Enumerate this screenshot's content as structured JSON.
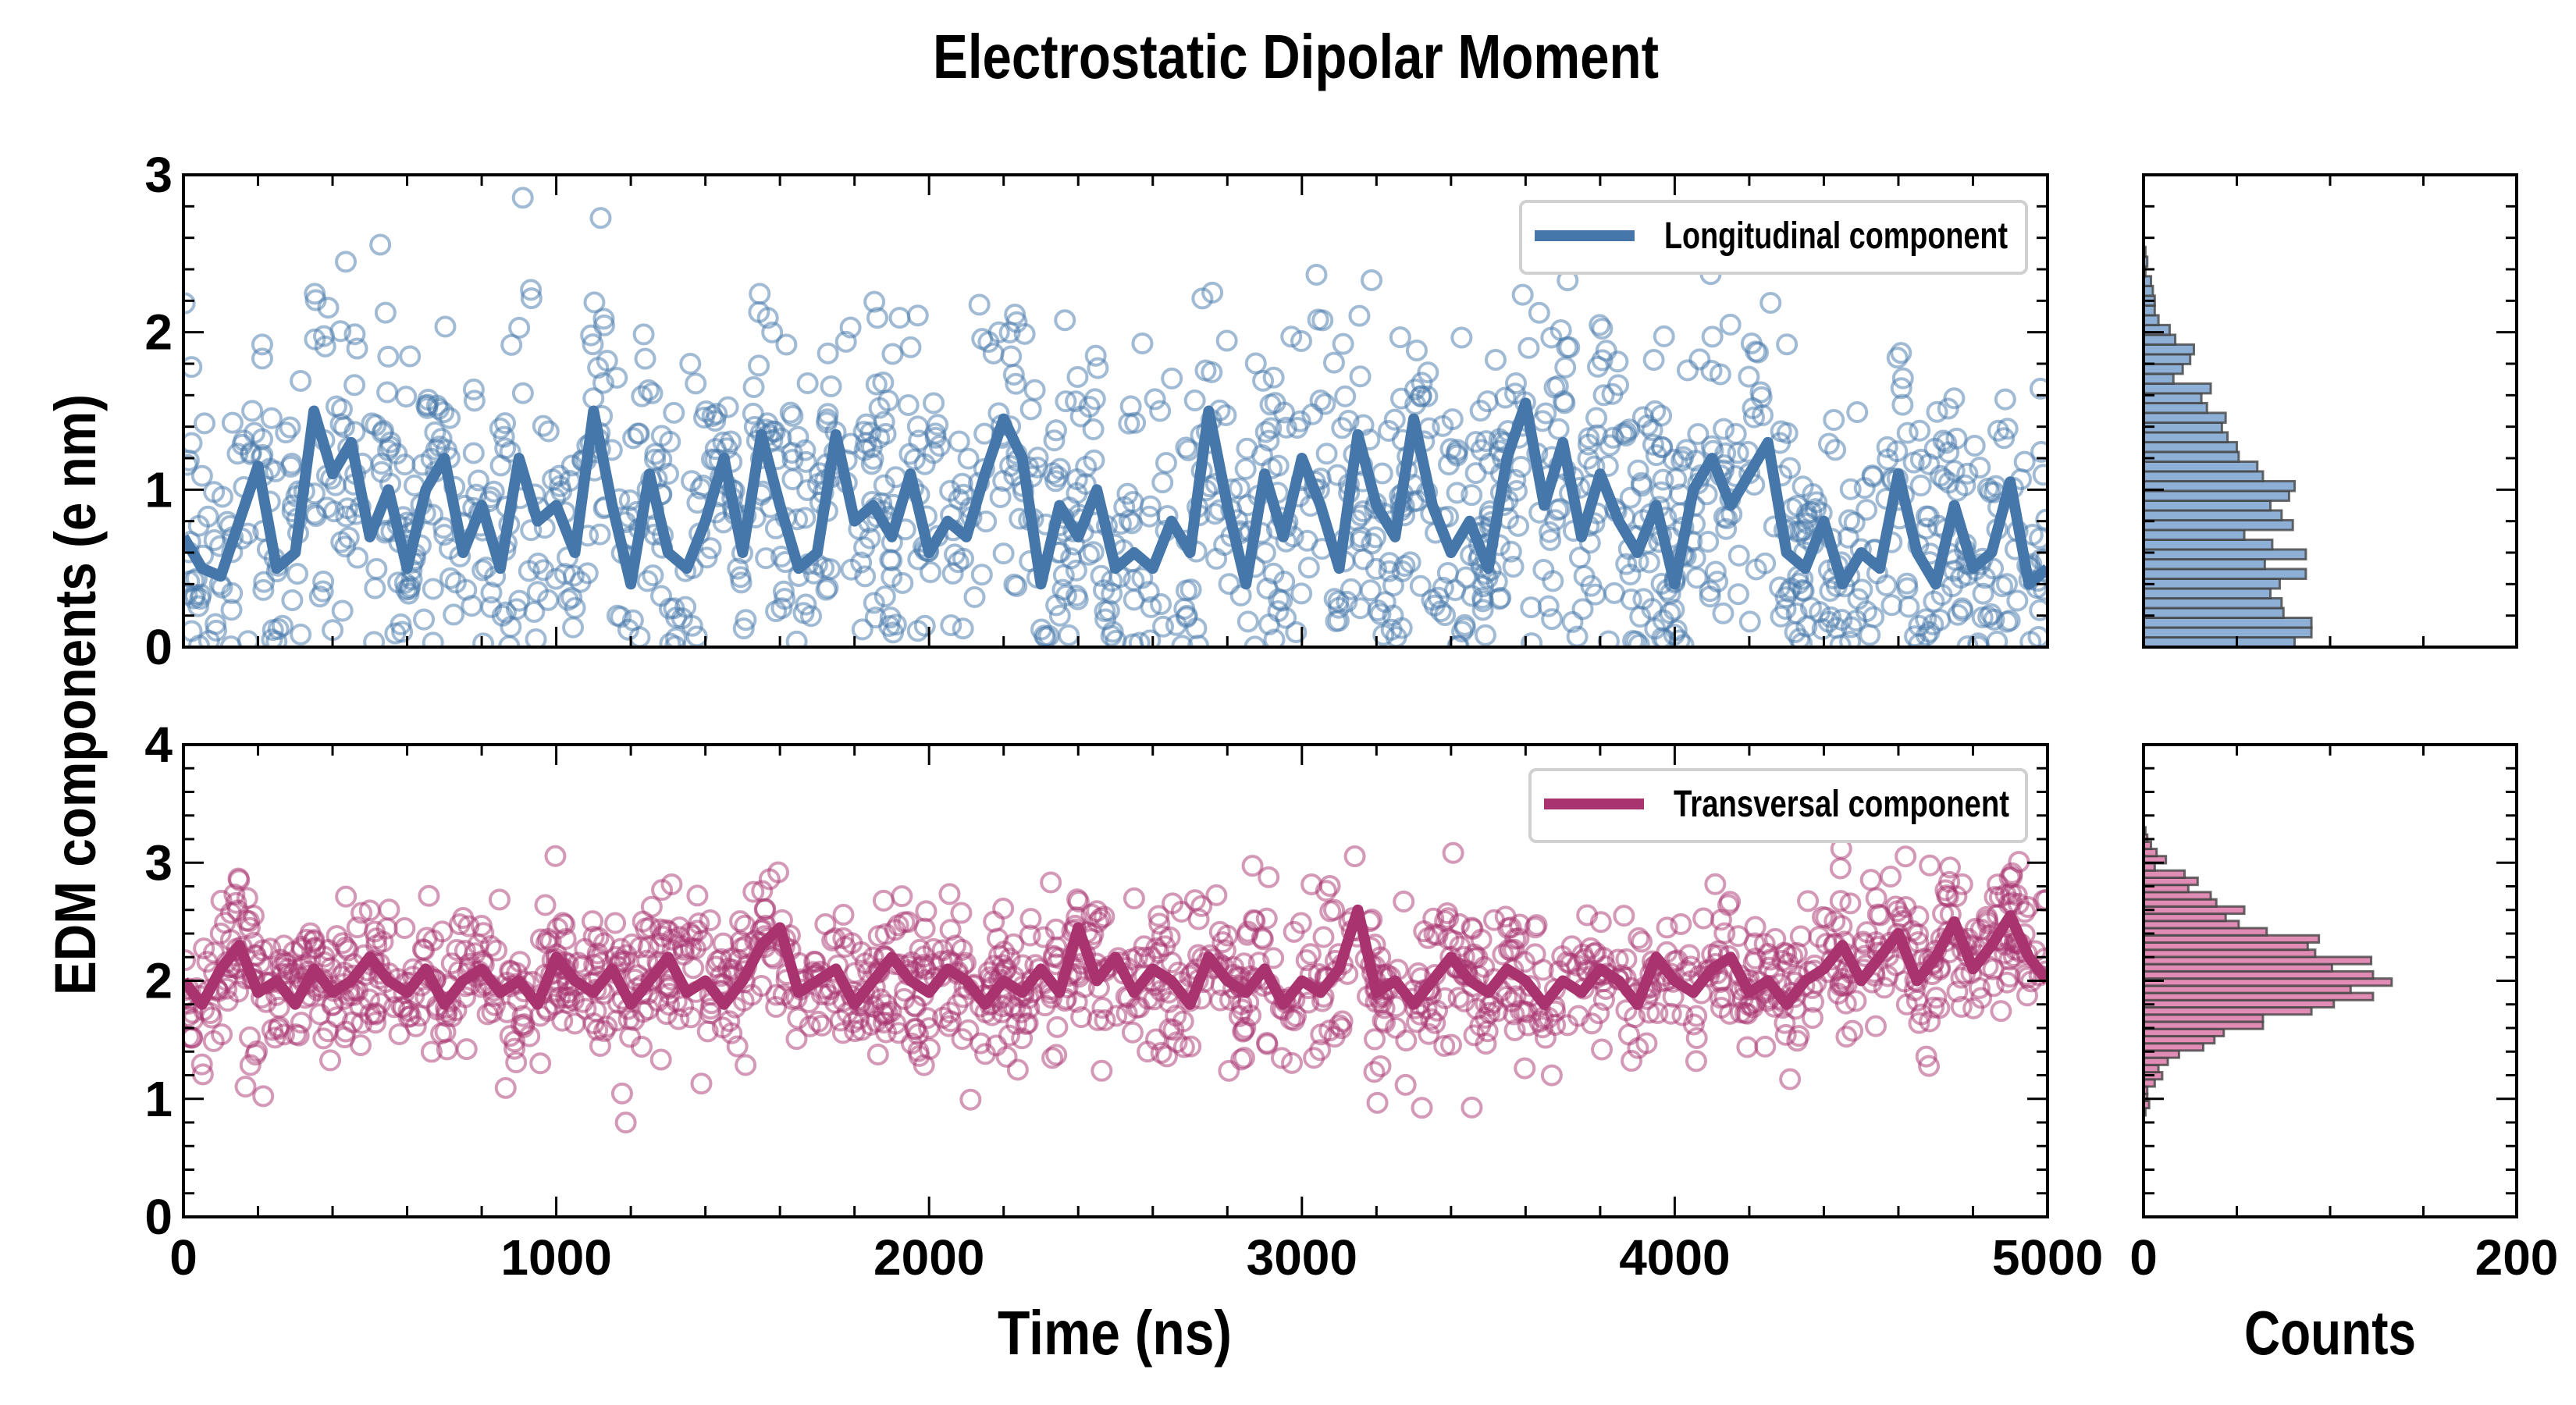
{
  "chart_data": [
    {
      "type": "scatter",
      "title": "Electrostatic Dipolar Moment",
      "ylabel": "EDM components (e nm)",
      "xlabel": "",
      "xlim": [
        0,
        5000
      ],
      "ylim": [
        0,
        3
      ],
      "yticks": [
        "0",
        "1",
        "2",
        "3"
      ],
      "legend": {
        "label": "Longitudinal component",
        "placement": "top-right"
      },
      "color": "#4577aa",
      "scatter_points": 1400,
      "scatter_spread": 0.55,
      "line": {
        "x_step": 50,
        "y": [
          0.7,
          0.5,
          0.45,
          0.8,
          1.15,
          0.5,
          0.6,
          1.5,
          1.1,
          1.3,
          0.7,
          1.0,
          0.5,
          1.0,
          1.2,
          0.6,
          0.9,
          0.5,
          1.2,
          0.8,
          0.9,
          0.6,
          1.5,
          0.9,
          0.4,
          1.1,
          0.6,
          0.5,
          0.8,
          1.2,
          0.6,
          1.35,
          0.9,
          0.5,
          0.6,
          1.35,
          0.8,
          0.9,
          0.7,
          1.1,
          0.6,
          0.8,
          0.7,
          1.1,
          1.45,
          1.2,
          0.4,
          0.9,
          0.7,
          1.0,
          0.5,
          0.6,
          0.5,
          0.8,
          0.6,
          1.5,
          0.9,
          0.4,
          1.1,
          0.7,
          1.2,
          0.9,
          0.5,
          1.35,
          0.9,
          0.7,
          1.45,
          0.9,
          0.6,
          0.8,
          0.5,
          1.2,
          1.55,
          0.9,
          1.3,
          0.7,
          1.1,
          0.8,
          0.6,
          0.9,
          0.4,
          1.0,
          1.2,
          0.9,
          1.1,
          1.3,
          0.6,
          0.5,
          0.8,
          0.4,
          0.6,
          0.5,
          1.1,
          0.6,
          0.4,
          0.9,
          0.5,
          0.6,
          1.05,
          0.4,
          0.5
        ]
      }
    },
    {
      "type": "scatter",
      "xlabel": "Time (ns)",
      "xlim": [
        0,
        5000
      ],
      "xticks": [
        "0",
        "1000",
        "2000",
        "3000",
        "4000",
        "5000"
      ],
      "ylim": [
        0,
        4
      ],
      "yticks": [
        "0",
        "1",
        "2",
        "3",
        "4"
      ],
      "legend": {
        "label": "Transversal component",
        "placement": "top-right"
      },
      "color": "#a8336f",
      "scatter_points": 1400,
      "scatter_spread": 0.32,
      "line": {
        "x_step": 50,
        "y": [
          2.0,
          1.8,
          2.1,
          2.3,
          1.9,
          2.0,
          1.8,
          2.1,
          1.9,
          2.0,
          2.2,
          2.0,
          1.9,
          2.1,
          1.8,
          2.0,
          2.1,
          1.9,
          2.0,
          1.8,
          2.2,
          2.0,
          1.9,
          2.1,
          1.8,
          2.0,
          2.2,
          1.9,
          2.0,
          1.8,
          2.0,
          2.3,
          2.45,
          1.9,
          2.0,
          2.1,
          1.8,
          2.0,
          2.2,
          2.0,
          1.9,
          2.1,
          2.0,
          1.8,
          2.0,
          1.9,
          2.1,
          1.9,
          2.45,
          2.0,
          2.2,
          1.9,
          2.1,
          2.0,
          1.8,
          2.2,
          2.0,
          1.9,
          2.1,
          1.8,
          2.0,
          1.9,
          2.1,
          2.6,
          1.9,
          2.0,
          1.8,
          2.0,
          2.2,
          2.0,
          1.9,
          2.1,
          2.0,
          1.8,
          2.0,
          1.9,
          2.1,
          2.0,
          1.8,
          2.2,
          2.0,
          1.9,
          2.1,
          2.2,
          1.9,
          2.0,
          1.8,
          2.0,
          2.1,
          2.3,
          2.0,
          2.2,
          2.4,
          2.0,
          2.2,
          2.5,
          2.1,
          2.3,
          2.55,
          2.2,
          2.0
        ]
      }
    },
    {
      "type": "bar",
      "orientation": "horizontal",
      "xlim": [
        0,
        200
      ],
      "ylim": [
        0,
        3
      ],
      "color": "#8fb0d6",
      "bin_start": 0,
      "bin_width": 0.062,
      "counts": [
        81,
        90,
        90,
        75,
        74,
        68,
        73,
        87,
        65,
        87,
        69,
        54,
        80,
        74,
        68,
        78,
        81,
        64,
        61,
        51,
        50,
        45,
        42,
        44,
        34,
        31,
        36,
        16,
        21,
        25,
        27,
        17,
        14,
        8,
        6,
        6,
        5,
        4,
        1,
        2,
        1
      ]
    },
    {
      "type": "bar",
      "orientation": "horizontal",
      "xlabel": "Counts",
      "xlim": [
        0,
        200
      ],
      "xticks": [
        "0",
        "200"
      ],
      "ylim": [
        0,
        4
      ],
      "color": "#e08cb5",
      "bin_start": 0.86,
      "bin_width": 0.061,
      "counts": [
        1,
        3,
        2,
        2,
        6,
        10,
        8,
        13,
        19,
        32,
        38,
        43,
        64,
        64,
        90,
        102,
        123,
        111,
        133,
        123,
        101,
        122,
        92,
        88,
        94,
        66,
        51,
        44,
        54,
        39,
        36,
        24,
        29,
        22,
        6,
        12,
        7,
        4,
        2,
        1
      ]
    }
  ]
}
